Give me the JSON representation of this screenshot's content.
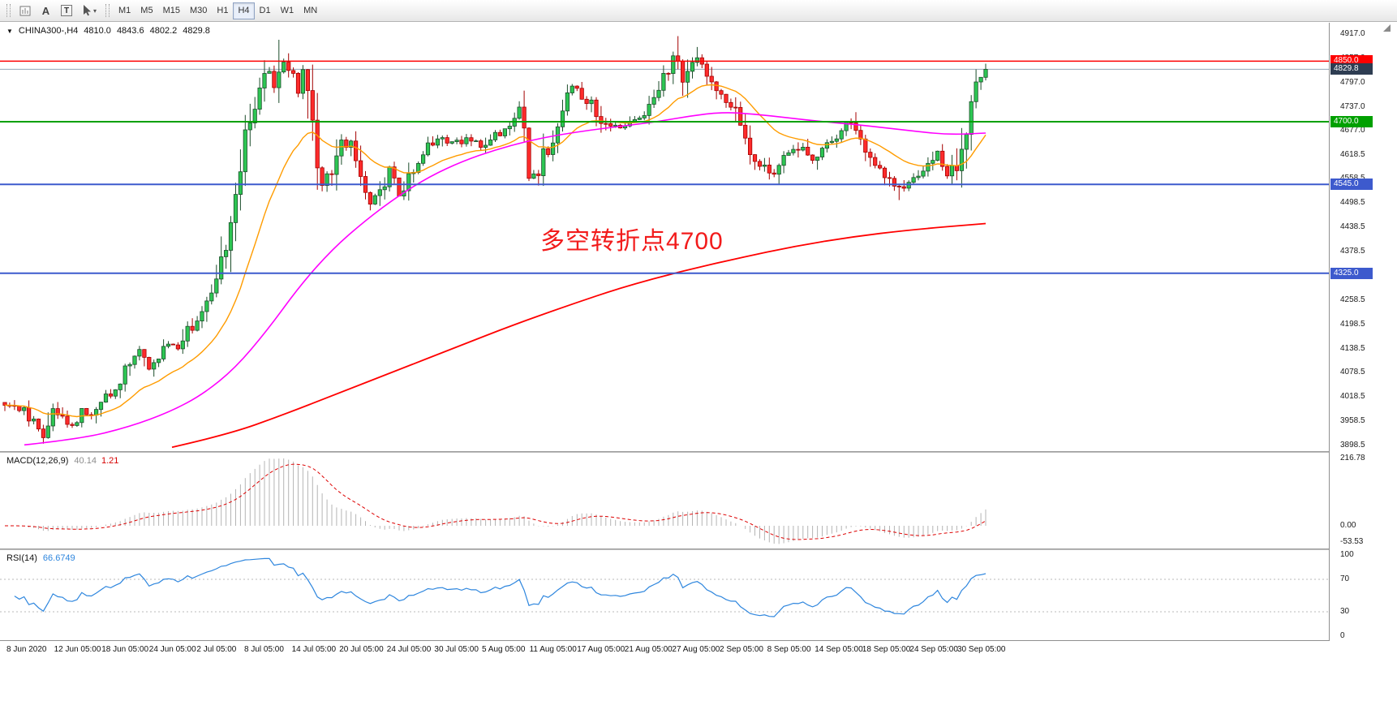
{
  "toolbar": {
    "tools": [
      {
        "name": "chart-window"
      },
      {
        "name": "text-annotation",
        "glyph": "A"
      },
      {
        "name": "text-label",
        "glyph": "T"
      },
      {
        "name": "cursor-select"
      },
      {
        "name": "tools-dropdown",
        "glyph": "▾"
      }
    ],
    "timeframes": [
      "M1",
      "M5",
      "M15",
      "M30",
      "H1",
      "H4",
      "D1",
      "W1",
      "MN"
    ],
    "active_timeframe": "H4"
  },
  "chart": {
    "header": {
      "expander_glyph": "▼",
      "symbol_period": "CHINA300-,H4",
      "open": "4810.0",
      "high": "4843.6",
      "low": "4802.2",
      "close": "4829.8"
    },
    "annotation": {
      "text": "多空转折点4700",
      "color": "#f21b1b"
    },
    "y_axis_labels": [
      "4917.0",
      "4857.0",
      "4797.0",
      "4737.0",
      "4677.0",
      "4618.5",
      "4558.5",
      "4498.5",
      "4438.5",
      "4378.5",
      "4318.5",
      "4258.5",
      "4198.5",
      "4138.5",
      "4078.5",
      "4018.5",
      "3958.5",
      "3898.5"
    ],
    "levels": [
      {
        "value": 4850.0,
        "label": "4850.0",
        "color": "#fe0000"
      },
      {
        "value": 4700.0,
        "label": "4700.0",
        "color": "#00a000"
      },
      {
        "value": 4545.0,
        "label": "4545.0",
        "color": "#3d5acd"
      },
      {
        "value": 4325.0,
        "label": "4325.0",
        "color": "#3d5acd"
      }
    ],
    "bid": {
      "value": 4829.8,
      "label": "4829.8",
      "color": "#2e3d52",
      "line_color": "#93a4b5"
    }
  },
  "macd_pane": {
    "label": "MACD(12,26,9)",
    "main_value": "40.14",
    "signal_value": "1.21",
    "axis_labels": [
      "216.78",
      "0.00",
      "-53.53"
    ]
  },
  "rsi_pane": {
    "label": "RSI(14)",
    "value": "66.6749",
    "axis_labels": [
      "100",
      "70",
      "30",
      "0"
    ]
  },
  "time_axis": [
    "8 Jun 2020",
    "12 Jun 05:00",
    "18 Jun 05:00",
    "24 Jun 05:00",
    "2 Jul 05:00",
    "8 Jul 05:00",
    "14 Jul 05:00",
    "20 Jul 05:00",
    "24 Jul 05:00",
    "30 Jul 05:00",
    "5 Aug 05:00",
    "11 Aug 05:00",
    "17 Aug 05:00",
    "21 Aug 05:00",
    "27 Aug 05:00",
    "2 Sep 05:00",
    "8 Sep 05:00",
    "14 Sep 05:00",
    "18 Sep 05:00",
    "24 Sep 05:00",
    "30 Sep 05:00"
  ],
  "chart_data": {
    "type": "candlestick",
    "symbol": "CHINA300-",
    "timeframe": "H4",
    "title": "CHINA300-,H4",
    "y_range": [
      3898.5,
      4917.0
    ],
    "x_range": [
      "8 Jun 2020",
      "30 Sep 2020"
    ],
    "last_candle_ohlc": {
      "open": 4810.0,
      "high": 4843.6,
      "low": 4802.2,
      "close": 4829.8
    },
    "candle_count": 205,
    "price_path": [
      [
        0,
        4005
      ],
      [
        3,
        3990
      ],
      [
        6,
        3955
      ],
      [
        8,
        3930
      ],
      [
        10,
        3995
      ],
      [
        12,
        3965
      ],
      [
        14,
        3945
      ],
      [
        16,
        3985
      ],
      [
        18,
        3970
      ],
      [
        21,
        4015
      ],
      [
        24,
        4060
      ],
      [
        26,
        4100
      ],
      [
        28,
        4135
      ],
      [
        30,
        4090
      ],
      [
        32,
        4120
      ],
      [
        34,
        4150
      ],
      [
        36,
        4145
      ],
      [
        38,
        4185
      ],
      [
        40,
        4205
      ],
      [
        42,
        4240
      ],
      [
        44,
        4310
      ],
      [
        46,
        4420
      ],
      [
        48,
        4550
      ],
      [
        50,
        4660
      ],
      [
        52,
        4755
      ],
      [
        54,
        4805
      ],
      [
        55,
        4835
      ],
      [
        56,
        4785
      ],
      [
        58,
        4845
      ],
      [
        60,
        4800
      ],
      [
        61,
        4765
      ],
      [
        62,
        4820
      ],
      [
        64,
        4680
      ],
      [
        66,
        4545
      ],
      [
        68,
        4585
      ],
      [
        70,
        4655
      ],
      [
        72,
        4640
      ],
      [
        74,
        4560
      ],
      [
        76,
        4490
      ],
      [
        78,
        4525
      ],
      [
        80,
        4585
      ],
      [
        82,
        4515
      ],
      [
        84,
        4560
      ],
      [
        87,
        4625
      ],
      [
        90,
        4665
      ],
      [
        93,
        4645
      ],
      [
        96,
        4655
      ],
      [
        99,
        4640
      ],
      [
        102,
        4665
      ],
      [
        105,
        4695
      ],
      [
        107,
        4720
      ],
      [
        109,
        4565
      ],
      [
        111,
        4580
      ],
      [
        113,
        4640
      ],
      [
        115,
        4700
      ],
      [
        117,
        4770
      ],
      [
        118,
        4790
      ],
      [
        120,
        4765
      ],
      [
        122,
        4745
      ],
      [
        124,
        4705
      ],
      [
        126,
        4680
      ],
      [
        128,
        4690
      ],
      [
        130,
        4700
      ],
      [
        132,
        4710
      ],
      [
        134,
        4730
      ],
      [
        136,
        4770
      ],
      [
        138,
        4830
      ],
      [
        140,
        4870
      ],
      [
        141,
        4790
      ],
      [
        143,
        4855
      ],
      [
        146,
        4825
      ],
      [
        148,
        4775
      ],
      [
        151,
        4745
      ],
      [
        153,
        4685
      ],
      [
        156,
        4615
      ],
      [
        158,
        4585
      ],
      [
        160,
        4565
      ],
      [
        163,
        4620
      ],
      [
        166,
        4645
      ],
      [
        168,
        4605
      ],
      [
        171,
        4650
      ],
      [
        173,
        4660
      ],
      [
        176,
        4700
      ],
      [
        178,
        4655
      ],
      [
        181,
        4605
      ],
      [
        184,
        4560
      ],
      [
        186,
        4530
      ],
      [
        188,
        4545
      ],
      [
        190,
        4570
      ],
      [
        192,
        4585
      ],
      [
        194,
        4620
      ],
      [
        196,
        4565
      ],
      [
        198,
        4605
      ],
      [
        200,
        4700
      ],
      [
        202,
        4795
      ],
      [
        203,
        4812
      ],
      [
        204,
        4830
      ]
    ],
    "forced_high_wicks": [
      [
        57,
        4903
      ],
      [
        140,
        4912
      ],
      [
        144,
        4885
      ]
    ],
    "forced_low_wicks": [
      [
        8,
        3903
      ],
      [
        186,
        4506
      ]
    ],
    "colors": {
      "up": "#2dc653",
      "up_edge": "#1b4d2a",
      "down": "#ff2b2b",
      "down_edge": "#a40000"
    },
    "moving_averages": [
      {
        "name": "fast",
        "method": "ema",
        "period": 20,
        "color": "#ff9c00"
      },
      {
        "name": "medium",
        "color": "#ff00ff",
        "path_x_price": [
          [
            30,
            3900
          ],
          [
            100,
            3915
          ],
          [
            160,
            3945
          ],
          [
            210,
            3982
          ],
          [
            250,
            4025
          ],
          [
            290,
            4090
          ],
          [
            330,
            4185
          ],
          [
            370,
            4295
          ],
          [
            410,
            4385
          ],
          [
            450,
            4455
          ],
          [
            490,
            4515
          ],
          [
            530,
            4565
          ],
          [
            570,
            4602
          ],
          [
            610,
            4630
          ],
          [
            650,
            4652
          ],
          [
            690,
            4668
          ],
          [
            730,
            4680
          ],
          [
            770,
            4690
          ],
          [
            810,
            4700
          ],
          [
            850,
            4714
          ],
          [
            890,
            4724
          ],
          [
            930,
            4719
          ],
          [
            970,
            4710
          ],
          [
            1010,
            4701
          ],
          [
            1050,
            4694
          ],
          [
            1090,
            4685
          ],
          [
            1130,
            4676
          ],
          [
            1170,
            4668
          ],
          [
            1215,
            4672
          ]
        ]
      },
      {
        "name": "slow",
        "color": "#ff0000",
        "path_x_price": [
          [
            212,
            3894
          ],
          [
            280,
            3925
          ],
          [
            350,
            3975
          ],
          [
            420,
            4030
          ],
          [
            490,
            4085
          ],
          [
            560,
            4140
          ],
          [
            630,
            4195
          ],
          [
            700,
            4245
          ],
          [
            770,
            4292
          ],
          [
            840,
            4330
          ],
          [
            910,
            4362
          ],
          [
            980,
            4392
          ],
          [
            1050,
            4415
          ],
          [
            1120,
            4432
          ],
          [
            1215,
            4448
          ]
        ]
      }
    ],
    "horizontal_levels": [
      4850,
      4700,
      4545,
      4325
    ],
    "macd": {
      "fast": 12,
      "slow": 26,
      "signal": 9,
      "display_max": 216.78,
      "display_min": -53.53,
      "current_main": 40.14,
      "current_signal": 1.21,
      "histogram_color": "#b4b4b4",
      "signal_color": "#dd0000"
    },
    "rsi": {
      "period": 14,
      "current": 66.6749,
      "levels": [
        70,
        30
      ],
      "line_color": "#2e86de"
    }
  }
}
